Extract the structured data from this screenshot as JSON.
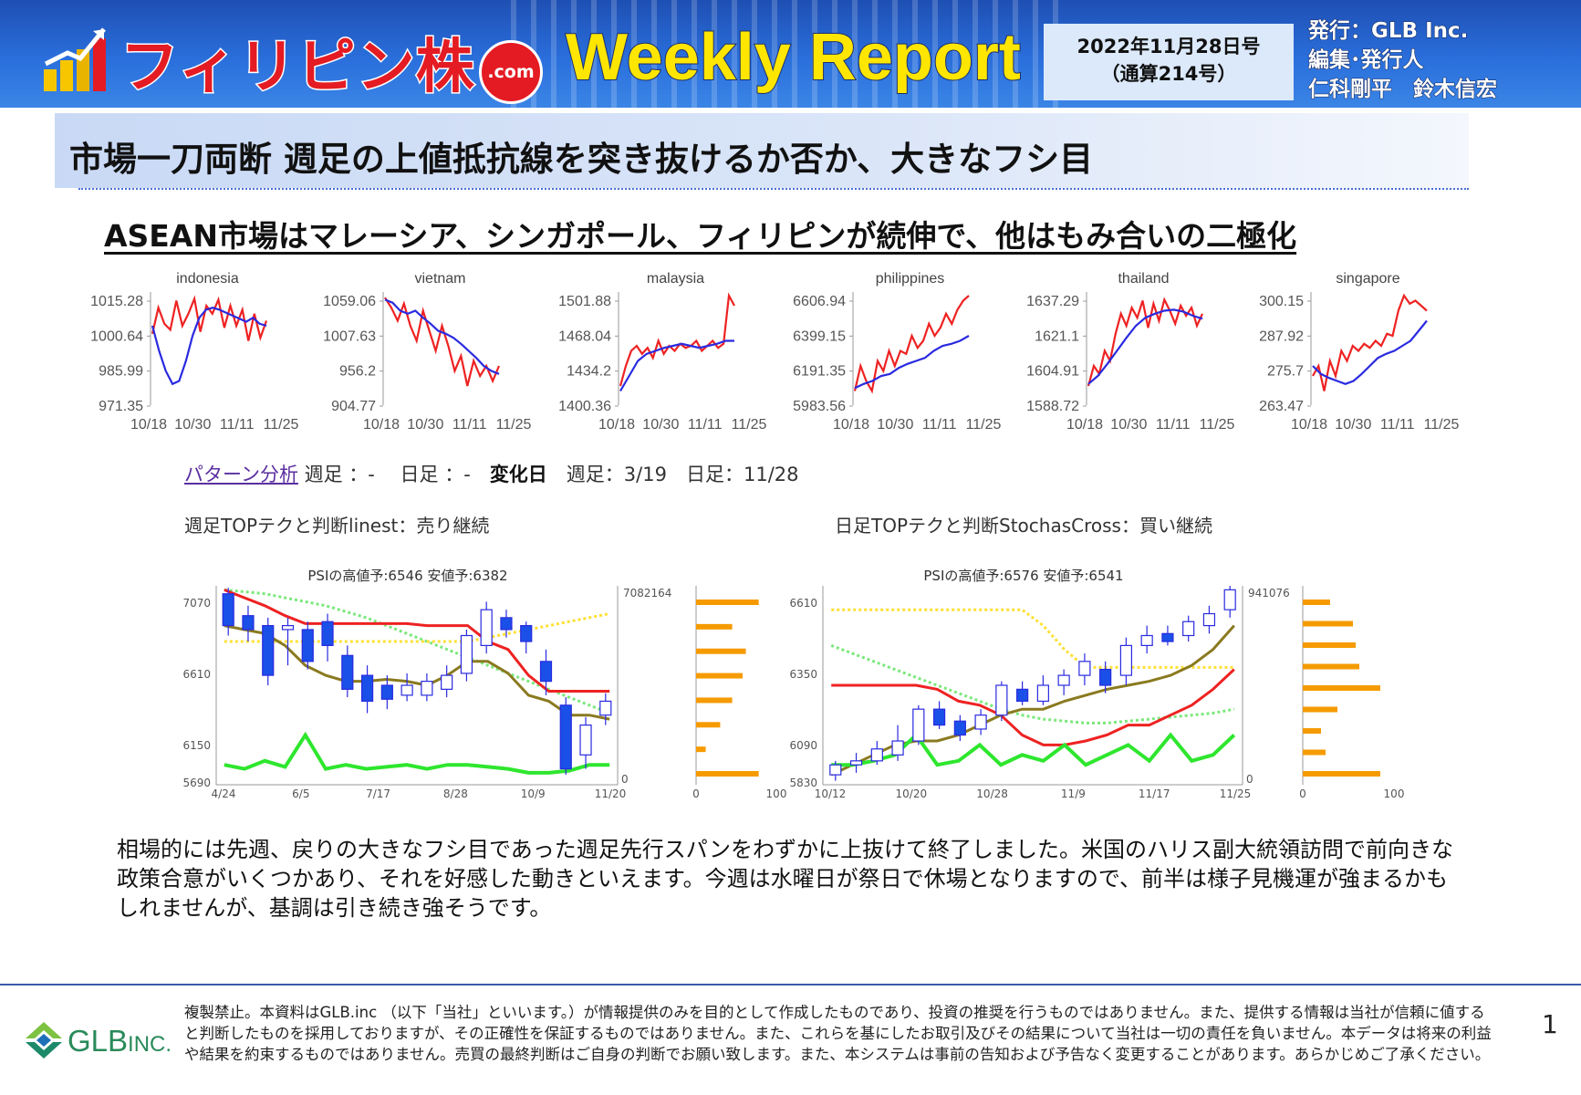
{
  "header": {
    "logo_main": "フィリピン株",
    "logo_com": ".com",
    "weekly": "Weekly Report",
    "date_line1": "2022年11月28日号",
    "date_line2": "（通算214号）",
    "publisher": "発行：GLB Inc.\n編集･発行人\n仁科剛平　鈴木信宏"
  },
  "headline": "市場一刀両断 週足の上値抵抗線を突き抜けるか否か、大きなフシ目",
  "subheadline": "ASEAN市場はマレーシア、シンガポール、フィリピンが続伸で、他はもみ合いの二極化",
  "mini_charts": [
    {
      "title": "indonesia",
      "yticks": [
        "1015.28",
        "1000.64",
        "985.99",
        "971.35"
      ],
      "xticks": [
        "10/18",
        "10/30",
        "11/11",
        "11/25"
      ],
      "red": [
        0.62,
        0.88,
        0.72,
        0.66,
        0.95,
        0.7,
        0.82,
        0.97,
        0.64,
        0.9,
        0.82,
        0.96,
        0.68,
        0.9,
        0.7,
        0.86,
        0.55,
        0.82,
        0.58,
        0.75
      ],
      "blue": [
        0.7,
        0.45,
        0.25,
        0.12,
        0.15,
        0.35,
        0.6,
        0.78,
        0.86,
        0.88,
        0.86,
        0.83,
        0.8,
        0.77,
        0.74,
        0.78,
        0.72,
        0.7
      ]
    },
    {
      "title": "vietnam",
      "yticks": [
        "1059.06",
        "1007.63",
        "956.2",
        "904.77"
      ],
      "xticks": [
        "10/18",
        "10/30",
        "11/11",
        "11/25"
      ],
      "red": [
        0.98,
        0.88,
        0.75,
        0.92,
        0.7,
        0.55,
        0.85,
        0.65,
        0.45,
        0.7,
        0.5,
        0.25,
        0.4,
        0.1,
        0.35,
        0.2,
        0.3,
        0.15,
        0.3
      ],
      "blue": [
        0.96,
        0.93,
        0.85,
        0.82,
        0.85,
        0.78,
        0.72,
        0.65,
        0.62,
        0.58,
        0.52,
        0.45,
        0.38,
        0.3,
        0.25,
        0.22
      ]
    },
    {
      "title": "malaysia",
      "yticks": [
        "1501.88",
        "1468.04",
        "1434.2",
        "1400.36"
      ],
      "xticks": [
        "10/18",
        "10/30",
        "11/11",
        "11/25"
      ],
      "red": [
        0.1,
        0.3,
        0.45,
        0.5,
        0.42,
        0.48,
        0.38,
        0.55,
        0.42,
        0.5,
        0.45,
        0.52,
        0.48,
        0.5,
        0.55,
        0.45,
        0.5,
        0.55,
        0.48,
        0.52,
        1.0,
        0.9
      ],
      "blue": [
        0.05,
        0.2,
        0.35,
        0.42,
        0.45,
        0.48,
        0.5,
        0.52,
        0.5,
        0.48,
        0.5,
        0.52,
        0.55,
        0.55
      ]
    },
    {
      "title": "philippines",
      "yticks": [
        "6606.94",
        "6399.15",
        "6191.35",
        "5983.56"
      ],
      "xticks": [
        "10/18",
        "10/30",
        "11/11",
        "11/25"
      ],
      "red": [
        0.05,
        0.3,
        0.15,
        0.05,
        0.35,
        0.25,
        0.45,
        0.3,
        0.45,
        0.42,
        0.6,
        0.48,
        0.55,
        0.72,
        0.6,
        0.68,
        0.82,
        0.72,
        0.86,
        0.95,
        1.0
      ],
      "blue": [
        0.08,
        0.12,
        0.15,
        0.2,
        0.22,
        0.28,
        0.32,
        0.35,
        0.38,
        0.45,
        0.5,
        0.52,
        0.55,
        0.6
      ]
    },
    {
      "title": "thailand",
      "yticks": [
        "1637.29",
        "1621.1",
        "1604.91",
        "1588.72"
      ],
      "xticks": [
        "10/18",
        "10/30",
        "11/11",
        "11/25"
      ],
      "red": [
        0.1,
        0.3,
        0.22,
        0.45,
        0.35,
        0.62,
        0.82,
        0.7,
        0.88,
        0.78,
        0.95,
        0.68,
        0.92,
        0.75,
        0.96,
        0.85,
        0.72,
        0.9,
        0.8,
        0.88,
        0.7,
        0.82
      ],
      "blue": [
        0.12,
        0.2,
        0.32,
        0.45,
        0.58,
        0.7,
        0.78,
        0.82,
        0.85,
        0.86,
        0.84,
        0.8,
        0.77
      ]
    },
    {
      "title": "singapore",
      "yticks": [
        "300.15",
        "287.92",
        "275.7",
        "263.47"
      ],
      "xticks": [
        "10/18",
        "10/30",
        "11/11",
        "11/25"
      ],
      "red": [
        0.2,
        0.3,
        0.05,
        0.35,
        0.2,
        0.45,
        0.35,
        0.5,
        0.45,
        0.52,
        0.48,
        0.55,
        0.5,
        0.62,
        0.6,
        0.85,
        1.0,
        0.92,
        0.95,
        0.9,
        0.85
      ],
      "blue": [
        0.3,
        0.22,
        0.18,
        0.15,
        0.12,
        0.15,
        0.22,
        0.3,
        0.38,
        0.42,
        0.45,
        0.5,
        0.55,
        0.65,
        0.75
      ]
    }
  ],
  "pattern": {
    "link": "パターン分析",
    "text": " 週足 ：-　 日足 ：-　",
    "bold": "変化日",
    "text2": "　週足：3/19　日足：11/28"
  },
  "weekly_judgement": "週足TOPテクと判断linest：売り継続",
  "daily_judgement": "日足TOPテクと判断StochasCross：買い継続",
  "weekly_chart": {
    "title": "PSIの高値予:6546 安値予:6382",
    "yticks": [
      "7070",
      "6610",
      "6150",
      "5690"
    ],
    "xticks": [
      "4/24",
      "6/5",
      "7/17",
      "8/28",
      "10/9",
      "11/20"
    ],
    "right_label": "7082164",
    "right_zero": "0",
    "bar_axis": [
      "0",
      "100"
    ],
    "bars": [
      0.78,
      0.45,
      0.62,
      0.58,
      0.45,
      0.3,
      0.12,
      0.78
    ]
  },
  "daily_chart": {
    "title": "PSIの高値予:6576 安値予:6541",
    "yticks": [
      "6610",
      "6350",
      "6090",
      "5830"
    ],
    "xticks": [
      "10/12",
      "10/20",
      "10/28",
      "11/9",
      "11/17",
      "11/25"
    ],
    "right_label": "941076",
    "right_zero": "0",
    "bar_axis": [
      "0",
      "100"
    ],
    "bars": [
      0.3,
      0.55,
      0.58,
      0.62,
      0.85,
      0.38,
      0.2,
      0.25,
      0.85
    ]
  },
  "paragraph": "相場的には先週、戻りの大きなフシ目であった週足先行スパンをわずかに上抜けて終了しました。米国のハリス副大統領訪問で前向きな政策合意がいくつかあり、それを好感した動きといえます。今週は水曜日が祭日で休場となりますので、前半は様子見機運が強まるかもしれませんが、基調は引き続き強そうです。",
  "footer": {
    "company": "GLB",
    "company_suffix": "INC.",
    "disclaimer": "複製禁止。本資料はGLB.inc （以下「当社」といいます。）が情報提供のみを目的として作成したものであり、投資の推奨を行うものではありません。また、提供する情報は当社が信頼に値すると判断したものを採用しておりますが、その正確性を保証するものではありません。また、これらを基にしたお取引及びその結果について当社は一切の責任を負いません。本データは将来の利益や結果を約束するものではありません。売買の最終判断はご自身の判断でお願い致します。また、本システムは事前の告知および予告なく変更することがあります。あらかじめご了承ください。",
    "page": "1"
  },
  "colors": {
    "red": "#ee2222",
    "blue": "#2a2ae0",
    "green": "#2ee62e",
    "olive": "#8a7a20",
    "orange": "#f59b00",
    "candle_blue": "#1a50e8"
  }
}
